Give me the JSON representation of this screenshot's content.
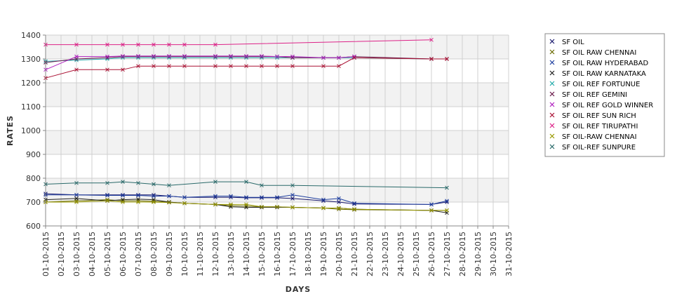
{
  "chart_data": {
    "type": "line",
    "title": "",
    "xlabel": "DAYS",
    "ylabel": "RATES",
    "ylim": [
      600,
      1400
    ],
    "yticks": [
      600,
      700,
      800,
      900,
      1000,
      1100,
      1200,
      1300,
      1400
    ],
    "xticks": [
      "01-10-2015",
      "02-10-2015",
      "03-10-2015",
      "04-10-2015",
      "05-10-2015",
      "06-10-2015",
      "07-10-2015",
      "08-10-2015",
      "09-10-2015",
      "10-10-2015",
      "11-10-2015",
      "12-10-2015",
      "13-10-2015",
      "14-10-2015",
      "15-10-2015",
      "16-10-2015",
      "17-10-2015",
      "18-10-2015",
      "19-10-2015",
      "20-10-2015",
      "21-10-2015",
      "22-10-2015",
      "23-10-2015",
      "24-10-2015",
      "25-10-2015",
      "26-10-2015",
      "27-10-2015",
      "28-10-2015",
      "29-10-2015",
      "30-10-2015",
      "31-10-2015"
    ],
    "grid": true,
    "legend_position": "right",
    "series": [
      {
        "name": "SF OIL",
        "color": "#1a1a6e",
        "points": [
          [
            1,
            735
          ],
          [
            3,
            730
          ],
          [
            5,
            730
          ],
          [
            6,
            730
          ],
          [
            7,
            730
          ],
          [
            8,
            730
          ],
          [
            9,
            725
          ],
          [
            10,
            720
          ],
          [
            12,
            720
          ],
          [
            13,
            720
          ],
          [
            14,
            718
          ],
          [
            15,
            718
          ],
          [
            16,
            718
          ],
          [
            17,
            715
          ],
          [
            19,
            705
          ],
          [
            20,
            700
          ],
          [
            21,
            692
          ],
          [
            26,
            690
          ],
          [
            27,
            700
          ]
        ]
      },
      {
        "name": "SF OIL RAW CHENNAI",
        "color": "#6b6b00",
        "points": [
          [
            1,
            700
          ],
          [
            3,
            705
          ],
          [
            5,
            710
          ],
          [
            6,
            705
          ],
          [
            7,
            705
          ],
          [
            8,
            703
          ],
          [
            9,
            700
          ],
          [
            10,
            695
          ],
          [
            12,
            690
          ],
          [
            13,
            685
          ],
          [
            14,
            683
          ],
          [
            15,
            680
          ],
          [
            16,
            680
          ],
          [
            17,
            678
          ],
          [
            19,
            675
          ],
          [
            20,
            670
          ],
          [
            21,
            668
          ],
          [
            26,
            665
          ],
          [
            27,
            665
          ]
        ]
      },
      {
        "name": "SF OIL RAW HYDERABAD",
        "color": "#1f3f9f",
        "points": [
          [
            1,
            730
          ],
          [
            3,
            730
          ],
          [
            5,
            728
          ],
          [
            6,
            728
          ],
          [
            7,
            728
          ],
          [
            8,
            725
          ],
          [
            9,
            725
          ],
          [
            10,
            720
          ],
          [
            12,
            725
          ],
          [
            13,
            725
          ],
          [
            14,
            720
          ],
          [
            15,
            720
          ],
          [
            16,
            720
          ],
          [
            17,
            730
          ],
          [
            19,
            710
          ],
          [
            20,
            715
          ],
          [
            21,
            695
          ],
          [
            26,
            690
          ],
          [
            27,
            705
          ]
        ]
      },
      {
        "name": "SF OIL RAW KARNATAKA",
        "color": "#222222",
        "points": [
          [
            1,
            710
          ],
          [
            3,
            715
          ],
          [
            5,
            705
          ],
          [
            6,
            710
          ],
          [
            7,
            712
          ],
          [
            8,
            710
          ],
          [
            9,
            700
          ],
          [
            10,
            695
          ],
          [
            12,
            690
          ],
          [
            13,
            680
          ],
          [
            14,
            678
          ],
          [
            15,
            678
          ],
          [
            16,
            678
          ],
          [
            17,
            678
          ],
          [
            19,
            675
          ],
          [
            20,
            675
          ],
          [
            21,
            670
          ],
          [
            26,
            665
          ],
          [
            27,
            655
          ]
        ]
      },
      {
        "name": "SF OIL REF FORTUNUE",
        "color": "#22aaaa",
        "points": [
          [
            1,
            1290
          ],
          [
            3,
            1295
          ],
          [
            5,
            1300
          ],
          [
            6,
            1305
          ],
          [
            7,
            1305
          ],
          [
            8,
            1305
          ],
          [
            9,
            1305
          ],
          [
            10,
            1305
          ],
          [
            12,
            1305
          ],
          [
            13,
            1305
          ],
          [
            14,
            1305
          ],
          [
            15,
            1305
          ],
          [
            16,
            1305
          ],
          [
            17,
            1305
          ],
          [
            19,
            1305
          ],
          [
            20,
            1305
          ],
          [
            21,
            1305
          ],
          [
            26,
            1300
          ]
        ]
      },
      {
        "name": "SF OIL REF GEMINI",
        "color": "#6a1a4a",
        "points": [
          [
            1,
            1285
          ],
          [
            3,
            1300
          ],
          [
            5,
            1305
          ],
          [
            6,
            1310
          ],
          [
            7,
            1310
          ],
          [
            8,
            1310
          ],
          [
            9,
            1310
          ],
          [
            10,
            1310
          ],
          [
            12,
            1310
          ],
          [
            13,
            1310
          ],
          [
            14,
            1310
          ],
          [
            15,
            1310
          ],
          [
            16,
            1310
          ],
          [
            17,
            1305
          ],
          [
            19,
            1305
          ],
          [
            20,
            1305
          ],
          [
            21,
            1310
          ],
          [
            26,
            1300
          ],
          [
            27,
            1300
          ]
        ]
      },
      {
        "name": "SF OIL REF GOLD WINNER",
        "color": "#b020c0",
        "points": [
          [
            1,
            1255
          ],
          [
            3,
            1310
          ],
          [
            5,
            1310
          ],
          [
            6,
            1312
          ],
          [
            7,
            1312
          ],
          [
            8,
            1312
          ],
          [
            9,
            1312
          ],
          [
            10,
            1312
          ],
          [
            12,
            1312
          ],
          [
            13,
            1312
          ],
          [
            14,
            1312
          ],
          [
            15,
            1312
          ],
          [
            16,
            1310
          ],
          [
            17,
            1310
          ],
          [
            19,
            1305
          ],
          [
            20,
            1305
          ],
          [
            21,
            1310
          ]
        ]
      },
      {
        "name": "SF OIL REF SUN RICH",
        "color": "#aa1133",
        "points": [
          [
            1,
            1220
          ],
          [
            3,
            1255
          ],
          [
            5,
            1255
          ],
          [
            6,
            1255
          ],
          [
            7,
            1270
          ],
          [
            8,
            1270
          ],
          [
            9,
            1270
          ],
          [
            10,
            1270
          ],
          [
            12,
            1270
          ],
          [
            13,
            1270
          ],
          [
            14,
            1270
          ],
          [
            15,
            1270
          ],
          [
            16,
            1270
          ],
          [
            17,
            1270
          ],
          [
            19,
            1270
          ],
          [
            20,
            1270
          ],
          [
            21,
            1305
          ],
          [
            26,
            1300
          ],
          [
            27,
            1300
          ]
        ]
      },
      {
        "name": "SF OIL REF TIRUPATHI",
        "color": "#dd2288",
        "points": [
          [
            1,
            1360
          ],
          [
            3,
            1360
          ],
          [
            5,
            1360
          ],
          [
            6,
            1360
          ],
          [
            7,
            1360
          ],
          [
            8,
            1360
          ],
          [
            9,
            1360
          ],
          [
            10,
            1360
          ],
          [
            12,
            1360
          ],
          [
            26,
            1380
          ]
        ]
      },
      {
        "name": "SF OIL-RAW CHENNAI",
        "color": "#999900",
        "points": [
          [
            1,
            700
          ],
          [
            3,
            700
          ],
          [
            5,
            705
          ],
          [
            6,
            700
          ],
          [
            7,
            700
          ],
          [
            8,
            700
          ],
          [
            9,
            698
          ],
          [
            10,
            695
          ],
          [
            12,
            690
          ],
          [
            13,
            690
          ],
          [
            14,
            690
          ],
          [
            15,
            680
          ],
          [
            16,
            680
          ],
          [
            17,
            678
          ],
          [
            19,
            675
          ],
          [
            20,
            675
          ],
          [
            21,
            670
          ],
          [
            26,
            665
          ],
          [
            27,
            665
          ]
        ]
      },
      {
        "name": "SF OIL-REF SUNPURE",
        "color": "#2a6a6a",
        "points": [
          [
            1,
            775
          ],
          [
            3,
            780
          ],
          [
            5,
            780
          ],
          [
            6,
            785
          ],
          [
            7,
            780
          ],
          [
            8,
            775
          ],
          [
            9,
            770
          ],
          [
            12,
            785
          ],
          [
            14,
            785
          ],
          [
            15,
            770
          ],
          [
            17,
            770
          ],
          [
            27,
            760
          ]
        ]
      }
    ]
  }
}
